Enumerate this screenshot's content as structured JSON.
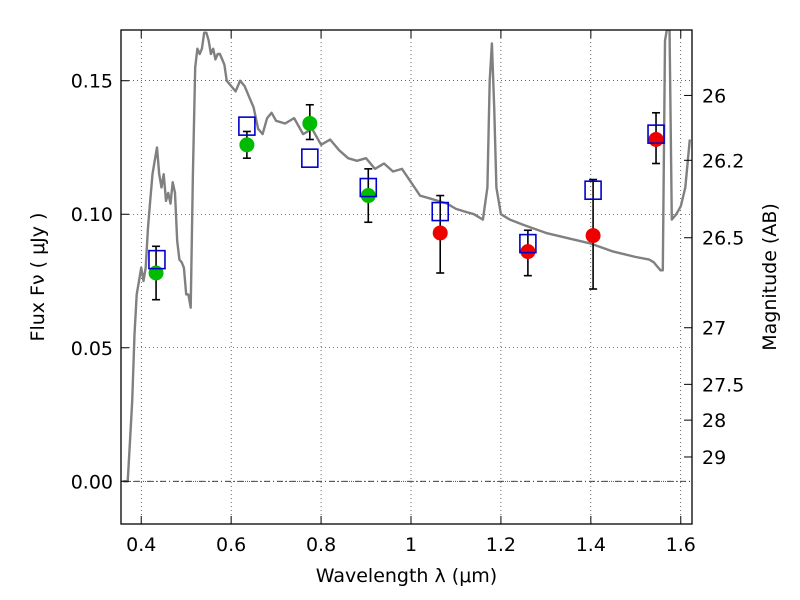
{
  "chart_data": {
    "type": "scatter",
    "xlabel": "Wavelength  λ (μm)",
    "ylabel": "Flux  Fν  ( μJy )",
    "y2label": "Magnitude (AB)",
    "xlim": [
      0.355,
      1.625
    ],
    "ylim": [
      -0.016,
      0.169
    ],
    "grid": true,
    "x_ticks": [
      {
        "value": 0.4,
        "label": "0.4"
      },
      {
        "value": 0.6,
        "label": "0.6"
      },
      {
        "value": 0.8,
        "label": "0.8"
      },
      {
        "value": 1.0,
        "label": "1"
      },
      {
        "value": 1.2,
        "label": "1.2"
      },
      {
        "value": 1.4,
        "label": "1.4"
      },
      {
        "value": 1.6,
        "label": "1.6"
      }
    ],
    "y_ticks": [
      {
        "value": 0.0,
        "label": "0.00"
      },
      {
        "value": 0.05,
        "label": "0.05"
      },
      {
        "value": 0.1,
        "label": "0.10"
      },
      {
        "value": 0.15,
        "label": "0.15"
      }
    ],
    "mag_ticks": [
      {
        "label": "26",
        "flux": 0.1445
      },
      {
        "label": "26.2",
        "flux": 0.1202
      },
      {
        "label": "26.5",
        "flux": 0.0912
      },
      {
        "label": "27",
        "flux": 0.0575
      },
      {
        "label": "27.5",
        "flux": 0.0363
      },
      {
        "label": "28",
        "flux": 0.0229
      },
      {
        "label": "29",
        "flux": 0.0091
      }
    ],
    "colors": {
      "model": "#808080",
      "green": "#00bb00",
      "red": "#ee0000",
      "box": "#0000cc",
      "error": "#000000"
    },
    "model_sed": {
      "x": [
        0.36,
        0.37,
        0.375,
        0.38,
        0.385,
        0.39,
        0.395,
        0.4,
        0.405,
        0.41,
        0.415,
        0.42,
        0.425,
        0.43,
        0.435,
        0.44,
        0.445,
        0.45,
        0.455,
        0.46,
        0.465,
        0.47,
        0.475,
        0.48,
        0.485,
        0.49,
        0.495,
        0.5,
        0.505,
        0.51,
        0.515,
        0.52,
        0.525,
        0.53,
        0.535,
        0.54,
        0.545,
        0.55,
        0.555,
        0.56,
        0.565,
        0.57,
        0.575,
        0.58,
        0.585,
        0.59,
        0.6,
        0.61,
        0.62,
        0.63,
        0.64,
        0.65,
        0.66,
        0.67,
        0.68,
        0.69,
        0.7,
        0.72,
        0.74,
        0.76,
        0.78,
        0.8,
        0.82,
        0.84,
        0.86,
        0.88,
        0.9,
        0.92,
        0.94,
        0.96,
        0.98,
        1.0,
        1.02,
        1.04,
        1.06,
        1.08,
        1.1,
        1.12,
        1.14,
        1.16,
        1.17,
        1.175,
        1.18,
        1.185,
        1.19,
        1.2,
        1.22,
        1.25,
        1.3,
        1.35,
        1.4,
        1.45,
        1.5,
        1.53,
        1.54,
        1.545,
        1.55,
        1.555,
        1.56,
        1.565,
        1.57,
        1.575,
        1.58,
        1.59,
        1.6,
        1.61,
        1.62
      ],
      "y": [
        0.0,
        0.0,
        0.015,
        0.03,
        0.055,
        0.07,
        0.075,
        0.08,
        0.075,
        0.08,
        0.095,
        0.105,
        0.115,
        0.12,
        0.125,
        0.115,
        0.11,
        0.115,
        0.105,
        0.108,
        0.104,
        0.112,
        0.108,
        0.09,
        0.083,
        0.082,
        0.08,
        0.07,
        0.07,
        0.065,
        0.115,
        0.155,
        0.162,
        0.16,
        0.162,
        0.168,
        0.168,
        0.165,
        0.16,
        0.162,
        0.158,
        0.16,
        0.16,
        0.158,
        0.156,
        0.15,
        0.148,
        0.146,
        0.15,
        0.148,
        0.144,
        0.14,
        0.132,
        0.13,
        0.136,
        0.138,
        0.135,
        0.134,
        0.136,
        0.13,
        0.132,
        0.126,
        0.128,
        0.124,
        0.121,
        0.12,
        0.121,
        0.117,
        0.119,
        0.116,
        0.117,
        0.112,
        0.107,
        0.106,
        0.105,
        0.104,
        0.102,
        0.101,
        0.1,
        0.098,
        0.11,
        0.15,
        0.164,
        0.14,
        0.11,
        0.1,
        0.098,
        0.096,
        0.093,
        0.091,
        0.089,
        0.086,
        0.084,
        0.083,
        0.082,
        0.081,
        0.08,
        0.079,
        0.079,
        0.165,
        0.17,
        0.17,
        0.098,
        0.1,
        0.103,
        0.11,
        0.128
      ]
    },
    "series": [
      {
        "marker": "circle",
        "color": "green",
        "points": [
          [
            0.433,
            0.078
          ],
          [
            0.635,
            0.126
          ],
          [
            0.775,
            0.134
          ],
          [
            0.905,
            0.107
          ]
        ]
      },
      {
        "marker": "circle",
        "color": "red",
        "points": [
          [
            1.065,
            0.093
          ],
          [
            1.26,
            0.086
          ],
          [
            1.405,
            0.092
          ],
          [
            1.545,
            0.128
          ]
        ]
      },
      {
        "marker": "square",
        "color": "box",
        "points": [
          [
            0.435,
            0.083
          ],
          [
            0.635,
            0.133
          ],
          [
            0.775,
            0.121
          ],
          [
            0.905,
            0.11
          ],
          [
            1.065,
            0.101
          ],
          [
            1.26,
            0.089
          ],
          [
            1.405,
            0.109
          ],
          [
            1.545,
            0.13
          ]
        ]
      }
    ],
    "error_bars": [
      {
        "x": 0.433,
        "low": 0.068,
        "high": 0.088
      },
      {
        "x": 0.635,
        "low": 0.121,
        "high": 0.131
      },
      {
        "x": 0.775,
        "low": 0.128,
        "high": 0.141
      },
      {
        "x": 0.905,
        "low": 0.097,
        "high": 0.117
      },
      {
        "x": 1.065,
        "low": 0.078,
        "high": 0.107
      },
      {
        "x": 1.26,
        "low": 0.077,
        "high": 0.094
      },
      {
        "x": 1.405,
        "low": 0.072,
        "high": 0.113
      },
      {
        "x": 1.545,
        "low": 0.119,
        "high": 0.138
      }
    ]
  }
}
